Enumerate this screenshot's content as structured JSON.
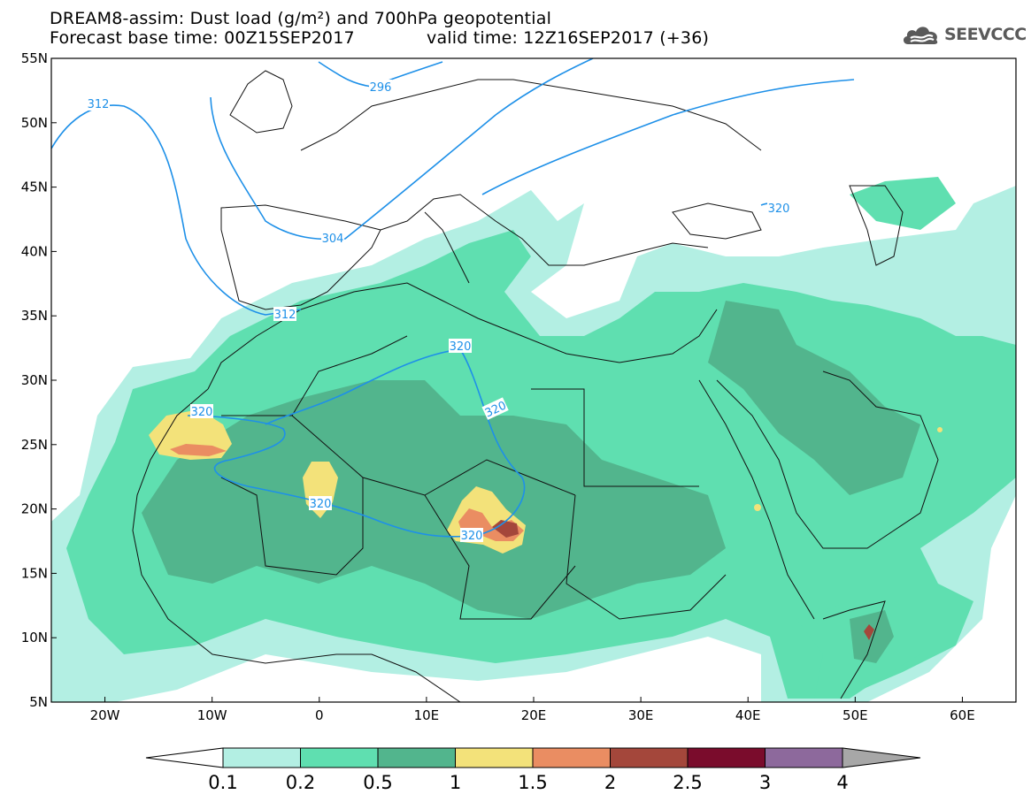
{
  "title": {
    "line1": "DREAM8-assim: Dust load (g/m²) and 700hPa geopotential",
    "line2_base": "Forecast base time: 00Z15SEP2017",
    "line2_valid": "valid time: 12Z16SEP2017 (+36)"
  },
  "logo": {
    "text": "SEEVCCC",
    "icon": "cloud-icon"
  },
  "map": {
    "lon_range": [
      -25,
      65
    ],
    "lat_range": [
      5,
      55
    ],
    "lat_ticks": [
      "55N",
      "50N",
      "45N",
      "40N",
      "35N",
      "30N",
      "25N",
      "20N",
      "15N",
      "10N",
      "5N"
    ],
    "lon_ticks": [
      "20W",
      "10W",
      "0",
      "10E",
      "20E",
      "30E",
      "40E",
      "50E",
      "60E"
    ]
  },
  "contours": {
    "color": "#1e90e8",
    "labels": [
      "312",
      "296",
      "304",
      "320",
      "312",
      "320",
      "320",
      "320",
      "320",
      "320"
    ]
  },
  "colorbar": {
    "ticks": [
      "0.1",
      "0.2",
      "0.5",
      "1",
      "1.5",
      "2",
      "2.5",
      "3",
      "4"
    ],
    "colors": [
      "#b3efe3",
      "#5fdfb0",
      "#52b58d",
      "#f3e27a",
      "#ea8d62",
      "#a4473b",
      "#7a0c2c",
      "#8d699c",
      "#a7a7a7"
    ],
    "under_color": "#ffffff",
    "over_color": "#a7a7a7"
  }
}
